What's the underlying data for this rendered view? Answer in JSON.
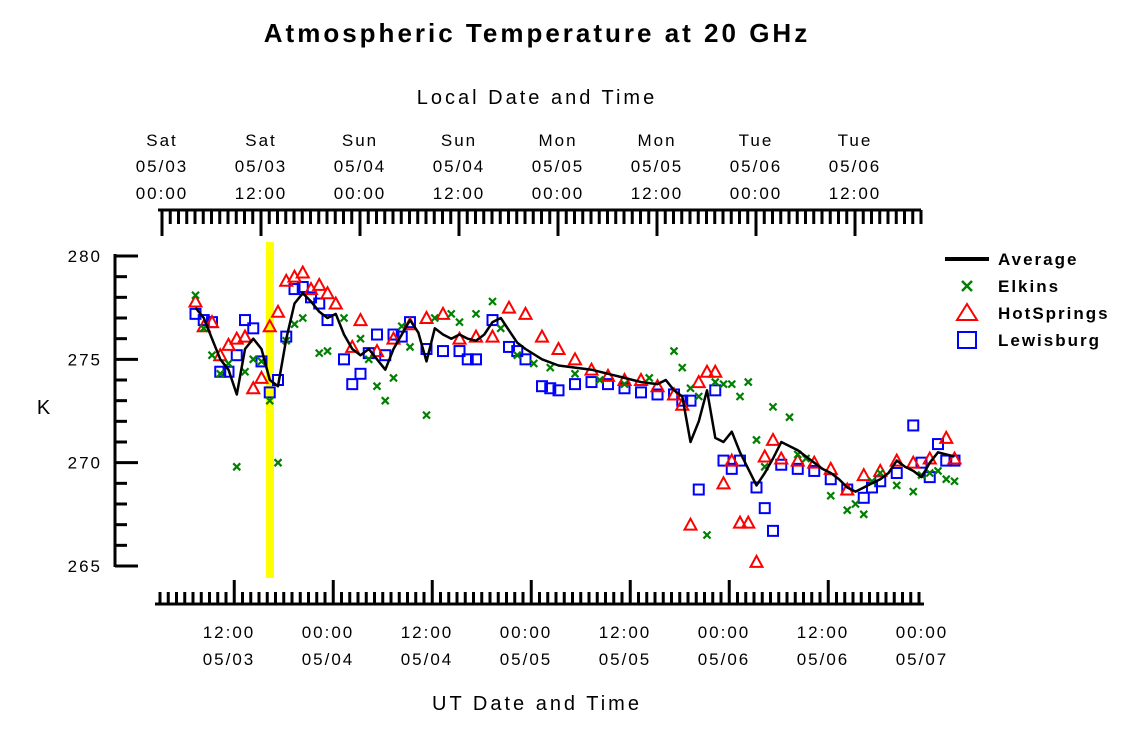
{
  "chart_data": {
    "type": "line",
    "title": "Atmospheric Temperature at 20 GHz",
    "ylabel": "K",
    "ylim": [
      264.5,
      280.5
    ],
    "yticks": [
      280,
      275,
      270,
      265
    ],
    "top_axis": {
      "label": "Local Date and Time",
      "ticks": [
        {
          "day": "Sat",
          "date": "05/03",
          "time": "00:00"
        },
        {
          "day": "Sat",
          "date": "05/03",
          "time": "12:00"
        },
        {
          "day": "Sun",
          "date": "05/04",
          "time": "00:00"
        },
        {
          "day": "Sun",
          "date": "05/04",
          "time": "12:00"
        },
        {
          "day": "Mon",
          "date": "05/05",
          "time": "00:00"
        },
        {
          "day": "Mon",
          "date": "05/05",
          "time": "12:00"
        },
        {
          "day": "Tue",
          "date": "05/06",
          "time": "00:00"
        },
        {
          "day": "Tue",
          "date": "05/06",
          "time": "12:00"
        }
      ]
    },
    "bottom_axis": {
      "label": "UT Date and Time",
      "ticks": [
        {
          "time": "12:00",
          "date": "05/03"
        },
        {
          "time": "00:00",
          "date": "05/04"
        },
        {
          "time": "12:00",
          "date": "05/04"
        },
        {
          "time": "00:00",
          "date": "05/05"
        },
        {
          "time": "12:00",
          "date": "05/05"
        },
        {
          "time": "00:00",
          "date": "05/06"
        },
        {
          "time": "12:00",
          "date": "05/06"
        },
        {
          "time": "00:00",
          "date": "05/07"
        }
      ]
    },
    "highlight_time": "2003-05-03T15:00",
    "series": [
      {
        "name": "Average",
        "marker": "line",
        "color": "#000000",
        "x": [
          "2003-05-03T04:00",
          "2003-05-03T05:00",
          "2003-05-03T06:00",
          "2003-05-03T07:00",
          "2003-05-03T08:00",
          "2003-05-03T09:00",
          "2003-05-03T10:00",
          "2003-05-03T11:00",
          "2003-05-03T12:00",
          "2003-05-03T13:00",
          "2003-05-03T14:00",
          "2003-05-03T15:00",
          "2003-05-03T16:00",
          "2003-05-03T17:00",
          "2003-05-03T18:00",
          "2003-05-03T19:00",
          "2003-05-03T20:00",
          "2003-05-03T21:00",
          "2003-05-03T22:00",
          "2003-05-03T23:00",
          "2003-05-04T00:00",
          "2003-05-04T01:00",
          "2003-05-04T02:00",
          "2003-05-04T03:00",
          "2003-05-04T04:00",
          "2003-05-04T05:00",
          "2003-05-04T06:00",
          "2003-05-04T07:00",
          "2003-05-04T08:00",
          "2003-05-04T09:00",
          "2003-05-04T10:00",
          "2003-05-04T11:00",
          "2003-05-04T12:00",
          "2003-05-04T13:00",
          "2003-05-04T14:00",
          "2003-05-04T15:00",
          "2003-05-04T16:00",
          "2003-05-04T17:00",
          "2003-05-04T18:00",
          "2003-05-04T19:00",
          "2003-05-04T20:00",
          "2003-05-04T22:00",
          "2003-05-05T00:00",
          "2003-05-05T02:00",
          "2003-05-05T04:00",
          "2003-05-05T06:00",
          "2003-05-05T08:00",
          "2003-05-05T10:00",
          "2003-05-05T12:00",
          "2003-05-05T13:00",
          "2003-05-05T14:00",
          "2003-05-05T15:00",
          "2003-05-05T16:00",
          "2003-05-05T17:00",
          "2003-05-05T18:00",
          "2003-05-05T19:00",
          "2003-05-05T20:00",
          "2003-05-05T21:00",
          "2003-05-05T22:00",
          "2003-05-06T00:00",
          "2003-05-06T01:00",
          "2003-05-06T02:00",
          "2003-05-06T03:00",
          "2003-05-06T04:00",
          "2003-05-06T05:00",
          "2003-05-06T06:00",
          "2003-05-06T07:00",
          "2003-05-06T08:00",
          "2003-05-06T09:00",
          "2003-05-06T10:00",
          "2003-05-06T11:00",
          "2003-05-06T12:00",
          "2003-05-06T13:00",
          "2003-05-06T14:00",
          "2003-05-06T15:00",
          "2003-05-06T16:00",
          "2003-05-06T17:00",
          "2003-05-06T18:00",
          "2003-05-06T19:00",
          "2003-05-06T20:00",
          "2003-05-06T21:00",
          "2003-05-06T22:00",
          "2003-05-06T23:00",
          "2003-05-07T00:00"
        ],
        "values": [
          277.5,
          277.0,
          276.0,
          275.0,
          274.5,
          273.3,
          275.5,
          276.0,
          275.5,
          274.0,
          273.7,
          276.0,
          277.7,
          278.2,
          277.8,
          277.3,
          277.0,
          277.2,
          276.2,
          275.5,
          275.2,
          275.5,
          275.0,
          274.5,
          275.5,
          276.2,
          276.9,
          276.3,
          274.9,
          276.5,
          276.2,
          276.0,
          276.2,
          276.0,
          275.9,
          276.2,
          276.8,
          277.0,
          276.4,
          275.8,
          275.5,
          275.0,
          274.7,
          274.6,
          274.5,
          274.3,
          274.1,
          273.9,
          273.8,
          274.0,
          273.5,
          273.2,
          271.0,
          272.0,
          273.5,
          271.2,
          271.0,
          271.5,
          270.5,
          268.9,
          269.5,
          270.2,
          271.0,
          270.8,
          270.6,
          270.3,
          270.0,
          269.7,
          269.5,
          269.2,
          268.8,
          268.6,
          268.8,
          269.0,
          269.2,
          269.5,
          270.1,
          269.8,
          269.6,
          269.3,
          270.0,
          270.5,
          270.4,
          270.3
        ]
      },
      {
        "name": "Elkins",
        "marker": "x",
        "color": "#008000",
        "x": [
          "2003-05-03T04:00",
          "2003-05-03T05:00",
          "2003-05-03T06:00",
          "2003-05-03T07:00",
          "2003-05-03T08:00",
          "2003-05-03T09:00",
          "2003-05-03T10:00",
          "2003-05-03T11:00",
          "2003-05-03T12:00",
          "2003-05-03T13:00",
          "2003-05-03T14:00",
          "2003-05-03T15:00",
          "2003-05-03T16:00",
          "2003-05-03T17:00",
          "2003-05-03T19:00",
          "2003-05-03T20:00",
          "2003-05-03T22:00",
          "2003-05-04T00:00",
          "2003-05-04T01:00",
          "2003-05-04T02:00",
          "2003-05-04T03:00",
          "2003-05-04T04:00",
          "2003-05-04T05:00",
          "2003-05-04T06:00",
          "2003-05-04T08:00",
          "2003-05-04T09:00",
          "2003-05-04T11:00",
          "2003-05-04T12:00",
          "2003-05-04T14:00",
          "2003-05-04T16:00",
          "2003-05-04T17:00",
          "2003-05-04T19:00",
          "2003-05-04T21:00",
          "2003-05-04T23:00",
          "2003-05-05T02:00",
          "2003-05-05T05:00",
          "2003-05-05T08:00",
          "2003-05-05T11:00",
          "2003-05-05T14:00",
          "2003-05-05T15:00",
          "2003-05-05T16:00",
          "2003-05-05T17:00",
          "2003-05-05T18:00",
          "2003-05-05T19:00",
          "2003-05-05T20:00",
          "2003-05-05T21:00",
          "2003-05-05T22:00",
          "2003-05-05T23:00",
          "2003-05-06T00:00",
          "2003-05-06T01:00",
          "2003-05-06T02:00",
          "2003-05-06T04:00",
          "2003-05-06T05:00",
          "2003-05-06T06:00",
          "2003-05-06T09:00",
          "2003-05-06T11:00",
          "2003-05-06T12:00",
          "2003-05-06T13:00",
          "2003-05-06T14:00",
          "2003-05-06T15:00",
          "2003-05-06T17:00",
          "2003-05-06T19:00",
          "2003-05-06T20:00",
          "2003-05-06T21:00",
          "2003-05-06T22:00",
          "2003-05-06T23:00",
          "2003-05-07T00:00"
        ],
        "values": [
          278.1,
          276.5,
          275.2,
          274.3,
          274.8,
          269.8,
          274.4,
          275.0,
          274.9,
          273.0,
          270.0,
          275.9,
          276.7,
          277.0,
          275.3,
          275.4,
          277.0,
          276.0,
          275.0,
          273.7,
          273.0,
          274.1,
          276.6,
          275.6,
          272.3,
          277.0,
          277.2,
          276.8,
          277.2,
          277.8,
          276.5,
          275.2,
          274.8,
          274.6,
          274.3,
          274.0,
          273.8,
          274.1,
          275.4,
          274.6,
          273.6,
          273.2,
          266.5,
          273.9,
          273.8,
          273.8,
          273.2,
          273.9,
          271.1,
          269.8,
          272.7,
          272.2,
          270.4,
          270.2,
          268.4,
          267.7,
          268.0,
          267.5,
          269.1,
          269.5,
          268.9,
          268.6,
          269.4,
          269.5,
          269.6,
          269.2,
          269.1
        ]
      },
      {
        "name": "HotSprings",
        "marker": "triangle",
        "color": "#ff0000",
        "x": [
          "2003-05-03T04:00",
          "2003-05-03T05:00",
          "2003-05-03T06:00",
          "2003-05-03T07:00",
          "2003-05-03T08:00",
          "2003-05-03T09:00",
          "2003-05-03T10:00",
          "2003-05-03T11:00",
          "2003-05-03T12:00",
          "2003-05-03T13:00",
          "2003-05-03T14:00",
          "2003-05-03T15:00",
          "2003-05-03T16:00",
          "2003-05-03T17:00",
          "2003-05-03T18:00",
          "2003-05-03T19:00",
          "2003-05-03T20:00",
          "2003-05-03T21:00",
          "2003-05-03T23:00",
          "2003-05-04T00:00",
          "2003-05-04T02:00",
          "2003-05-04T04:00",
          "2003-05-04T06:00",
          "2003-05-04T08:00",
          "2003-05-04T10:00",
          "2003-05-04T12:00",
          "2003-05-04T14:00",
          "2003-05-04T16:00",
          "2003-05-04T18:00",
          "2003-05-04T20:00",
          "2003-05-04T22:00",
          "2003-05-05T00:00",
          "2003-05-05T02:00",
          "2003-05-05T04:00",
          "2003-05-05T06:00",
          "2003-05-05T08:00",
          "2003-05-05T10:00",
          "2003-05-05T12:00",
          "2003-05-05T14:00",
          "2003-05-05T15:00",
          "2003-05-05T16:00",
          "2003-05-05T17:00",
          "2003-05-05T18:00",
          "2003-05-05T19:00",
          "2003-05-05T20:00",
          "2003-05-05T21:00",
          "2003-05-05T22:00",
          "2003-05-05T23:00",
          "2003-05-06T00:00",
          "2003-05-06T01:00",
          "2003-05-06T02:00",
          "2003-05-06T03:00",
          "2003-05-06T05:00",
          "2003-05-06T07:00",
          "2003-05-06T09:00",
          "2003-05-06T11:00",
          "2003-05-06T13:00",
          "2003-05-06T15:00",
          "2003-05-06T17:00",
          "2003-05-06T19:00",
          "2003-05-06T21:00",
          "2003-05-06T23:00",
          "2003-05-07T00:00"
        ],
        "values": [
          277.8,
          276.6,
          276.8,
          275.2,
          275.7,
          276.0,
          276.1,
          273.6,
          274.1,
          276.6,
          277.3,
          278.8,
          279.0,
          279.2,
          278.4,
          278.6,
          278.2,
          277.7,
          275.6,
          276.9,
          275.4,
          276.0,
          276.7,
          277.0,
          277.2,
          276.0,
          276.1,
          276.1,
          277.5,
          277.2,
          276.1,
          275.5,
          275.0,
          274.5,
          274.2,
          274.0,
          274.0,
          273.7,
          273.3,
          272.8,
          267.0,
          273.9,
          274.4,
          274.4,
          269.0,
          270.1,
          267.1,
          267.1,
          265.2,
          270.3,
          271.1,
          270.2,
          270.1,
          270.0,
          269.7,
          268.7,
          269.4,
          269.6,
          270.1,
          270.0,
          270.2,
          271.2,
          270.2
        ]
      },
      {
        "name": "Lewisburg",
        "marker": "square",
        "color": "#0000ff",
        "x": [
          "2003-05-03T04:00",
          "2003-05-03T05:00",
          "2003-05-03T06:00",
          "2003-05-03T07:00",
          "2003-05-03T08:00",
          "2003-05-03T09:00",
          "2003-05-03T10:00",
          "2003-05-03T11:00",
          "2003-05-03T12:00",
          "2003-05-03T13:00",
          "2003-05-03T14:00",
          "2003-05-03T15:00",
          "2003-05-03T16:00",
          "2003-05-03T17:00",
          "2003-05-03T18:00",
          "2003-05-03T19:00",
          "2003-05-03T20:00",
          "2003-05-03T22:00",
          "2003-05-03T23:00",
          "2003-05-04T00:00",
          "2003-05-04T01:00",
          "2003-05-04T02:00",
          "2003-05-04T03:00",
          "2003-05-04T04:00",
          "2003-05-04T05:00",
          "2003-05-04T06:00",
          "2003-05-04T08:00",
          "2003-05-04T10:00",
          "2003-05-04T12:00",
          "2003-05-04T13:00",
          "2003-05-04T14:00",
          "2003-05-04T16:00",
          "2003-05-04T18:00",
          "2003-05-04T19:00",
          "2003-05-04T20:00",
          "2003-05-04T22:00",
          "2003-05-04T23:00",
          "2003-05-05T00:00",
          "2003-05-05T02:00",
          "2003-05-05T04:00",
          "2003-05-05T06:00",
          "2003-05-05T08:00",
          "2003-05-05T10:00",
          "2003-05-05T12:00",
          "2003-05-05T14:00",
          "2003-05-05T15:00",
          "2003-05-05T16:00",
          "2003-05-05T17:00",
          "2003-05-05T19:00",
          "2003-05-05T20:00",
          "2003-05-05T21:00",
          "2003-05-05T22:00",
          "2003-05-06T00:00",
          "2003-05-06T01:00",
          "2003-05-06T02:00",
          "2003-05-06T03:00",
          "2003-05-06T05:00",
          "2003-05-06T07:00",
          "2003-05-06T09:00",
          "2003-05-06T11:00",
          "2003-05-06T13:00",
          "2003-05-06T14:00",
          "2003-05-06T15:00",
          "2003-05-06T17:00",
          "2003-05-06T19:00",
          "2003-05-06T20:00",
          "2003-05-06T21:00",
          "2003-05-06T22:00",
          "2003-05-06T23:00",
          "2003-05-07T00:00"
        ],
        "values": [
          277.2,
          276.9,
          276.8,
          274.4,
          274.4,
          275.2,
          276.9,
          276.5,
          274.9,
          273.4,
          274.0,
          276.1,
          278.4,
          278.5,
          278.0,
          277.7,
          276.9,
          275.0,
          273.8,
          274.3,
          275.3,
          276.2,
          275.2,
          276.2,
          276.1,
          276.8,
          275.5,
          275.4,
          275.4,
          275.0,
          275.0,
          276.9,
          275.6,
          275.4,
          275.0,
          273.7,
          273.6,
          273.5,
          273.8,
          273.9,
          273.8,
          273.6,
          273.4,
          273.3,
          273.3,
          273.0,
          273.0,
          268.7,
          273.5,
          270.1,
          269.7,
          270.1,
          268.8,
          267.8,
          266.7,
          269.9,
          269.7,
          269.6,
          269.2,
          268.7,
          268.3,
          268.8,
          269.1,
          269.5,
          271.8,
          270.0,
          269.3,
          270.9,
          270.1,
          270.1
        ]
      }
    ],
    "legend": {
      "position": "top-right"
    },
    "grid": false
  }
}
